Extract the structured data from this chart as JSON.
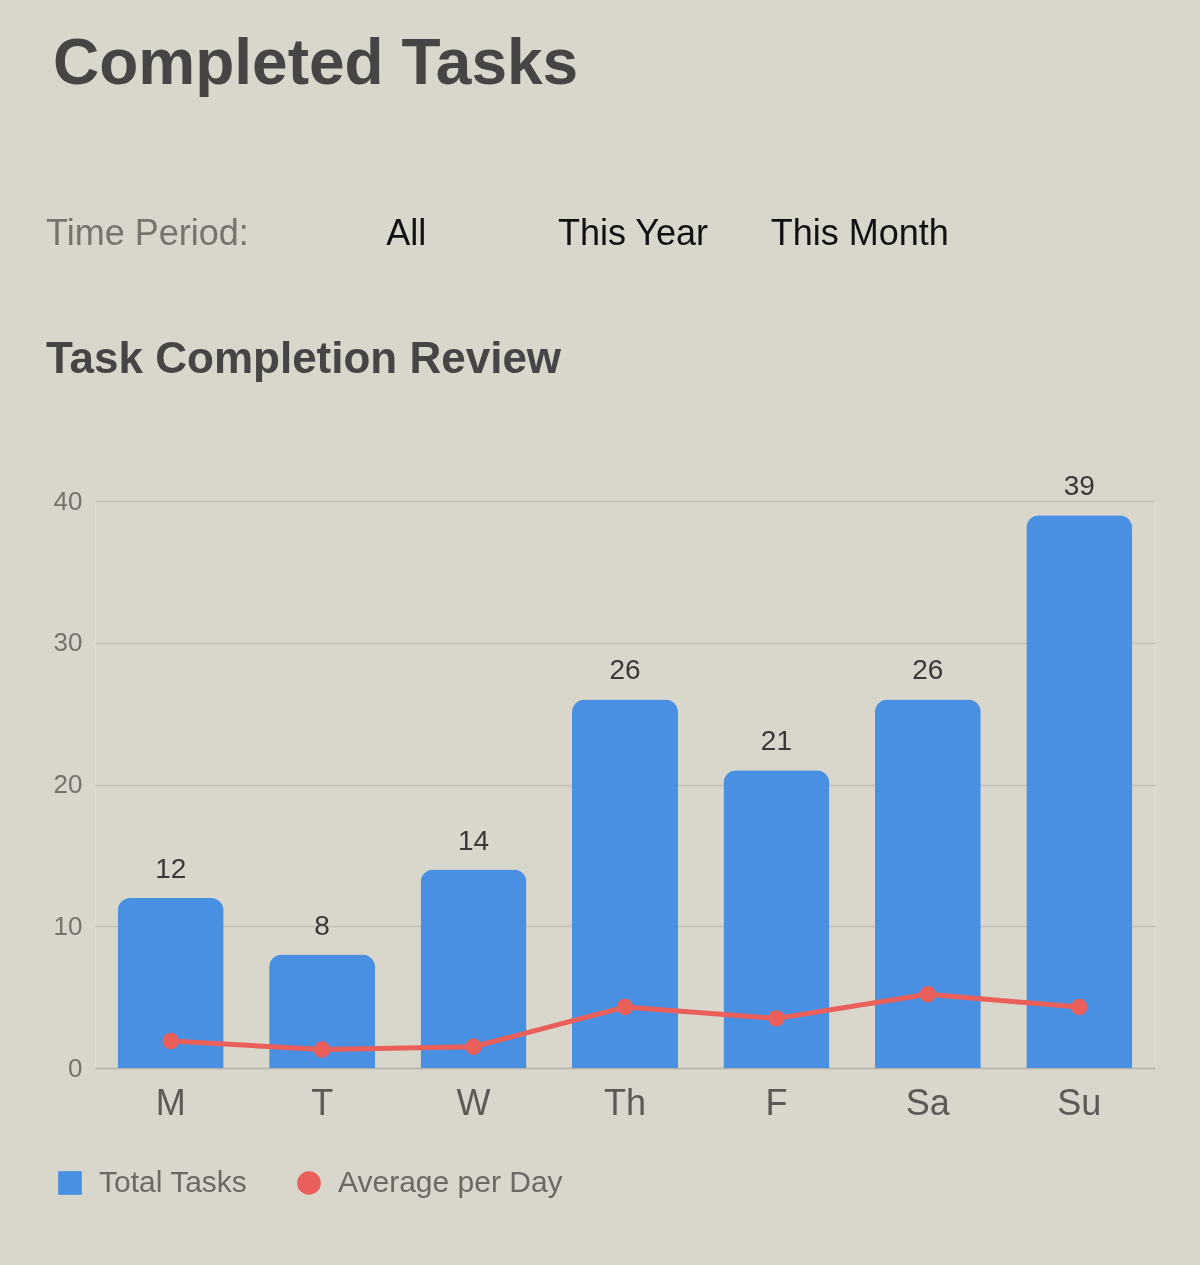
{
  "chart_data": {
    "type": "bar",
    "title": "Completed Tasks",
    "subtitle": "Task Completion Review",
    "annotations": [
      "Time Period:",
      "All",
      "This Year",
      "This Month"
    ],
    "categories": [
      "M",
      "T",
      "W",
      "Th",
      "F",
      "Sa",
      "Su"
    ],
    "series": [
      {
        "name": "Total Tasks",
        "color": "#4a90e2",
        "values": [
          12,
          8,
          14,
          26,
          21,
          26,
          39
        ],
        "value_labels": [
          "12",
          "8",
          "14",
          "26",
          "21",
          "26",
          "39"
        ]
      },
      {
        "name": "Average per Day",
        "type": "line",
        "color": "#eb5f5b",
        "values": [
          1.9,
          1.3,
          1.5,
          4.3,
          3.5,
          5.2,
          4.3
        ]
      }
    ],
    "ylim": [
      0,
      40
    ],
    "yticks": [
      0,
      10,
      20,
      30,
      40
    ],
    "grid": "y",
    "legend": "bottom left",
    "marker": "circle",
    "line_style": "solid"
  }
}
